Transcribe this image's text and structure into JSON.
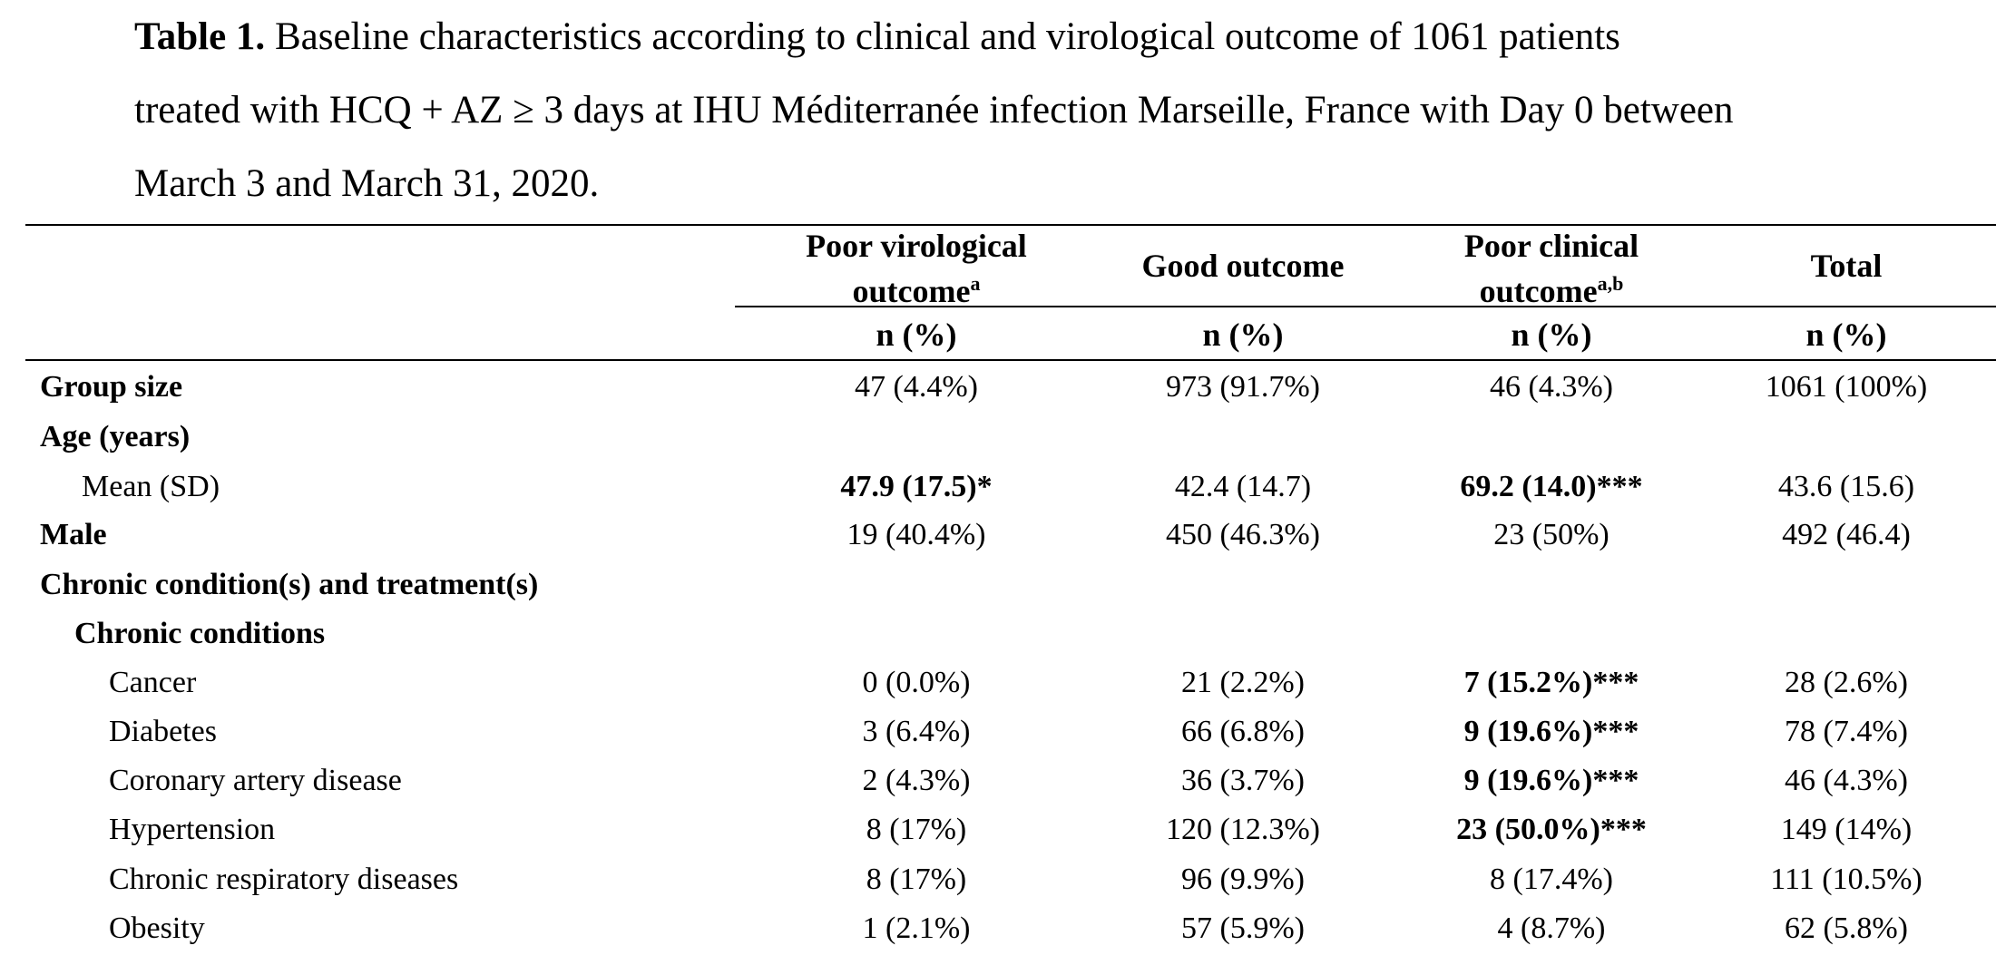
{
  "caption": {
    "label": "Table 1.",
    "line1": " Baseline characteristics according to clinical and virological outcome of 1061 patients",
    "line2": "treated with HCQ + AZ ≥ 3 days at IHU Méditerranée infection Marseille, France with Day 0 between",
    "line3": "March 3 and March 31, 2020."
  },
  "columns": {
    "poor_virological": {
      "line1": "Poor virological",
      "line2": "outcome",
      "sup": "a"
    },
    "good_outcome": {
      "label": "Good outcome"
    },
    "poor_clinical": {
      "line1": "Poor clinical",
      "line2": "outcome",
      "sup": "a,b"
    },
    "total": {
      "label": "Total"
    },
    "subheader": "n (%)"
  },
  "rows": [
    {
      "label": "Group size",
      "level": "l0",
      "values": [
        "47 (4.4%)",
        "973 (91.7%)",
        "46 (4.3%)",
        "1061 (100%)"
      ],
      "bold": [
        false,
        false,
        false,
        false
      ]
    },
    {
      "label": "Age (years)",
      "level": "l0",
      "values": [
        "",
        "",
        "",
        ""
      ],
      "bold": [
        false,
        false,
        false,
        false
      ]
    },
    {
      "label": "Mean (SD)",
      "level": "l1n",
      "values": [
        "47.9 (17.5)*",
        "42.4 (14.7)",
        "69.2 (14.0)***",
        "43.6 (15.6)"
      ],
      "bold": [
        true,
        false,
        true,
        false
      ]
    },
    {
      "label": "Male",
      "level": "l0",
      "values": [
        "19 (40.4%)",
        "450 (46.3%)",
        "23 (50%)",
        "492 (46.4)"
      ],
      "bold": [
        false,
        false,
        false,
        false
      ]
    },
    {
      "label": "Chronic condition(s) and treatment(s)",
      "level": "l0",
      "values": [
        "",
        "",
        "",
        ""
      ],
      "bold": [
        false,
        false,
        false,
        false
      ]
    },
    {
      "label": "Chronic conditions",
      "level": "l1",
      "values": [
        "",
        "",
        "",
        ""
      ],
      "bold": [
        false,
        false,
        false,
        false
      ]
    },
    {
      "label": "Cancer",
      "level": "l2",
      "values": [
        "0 (0.0%)",
        "21 (2.2%)",
        "7 (15.2%)***",
        "28 (2.6%)"
      ],
      "bold": [
        false,
        false,
        true,
        false
      ]
    },
    {
      "label": "Diabetes",
      "level": "l2",
      "values": [
        "3 (6.4%)",
        "66 (6.8%)",
        "9 (19.6%)***",
        "78 (7.4%)"
      ],
      "bold": [
        false,
        false,
        true,
        false
      ]
    },
    {
      "label": "Coronary artery disease",
      "level": "l2",
      "values": [
        "2 (4.3%)",
        "36 (3.7%)",
        "9 (19.6%)***",
        "46 (4.3%)"
      ],
      "bold": [
        false,
        false,
        true,
        false
      ]
    },
    {
      "label": "Hypertension",
      "level": "l2",
      "values": [
        "8 (17%)",
        "120 (12.3%)",
        "23 (50.0%)***",
        "149 (14%)"
      ],
      "bold": [
        false,
        false,
        true,
        false
      ]
    },
    {
      "label": "Chronic respiratory diseases",
      "level": "l2",
      "values": [
        "8 (17%)",
        "96 (9.9%)",
        "8 (17.4%)",
        "111 (10.5%)"
      ],
      "bold": [
        false,
        false,
        false,
        false
      ]
    },
    {
      "label": "Obesity",
      "level": "l2",
      "values": [
        "1 (2.1%)",
        "57 (5.9%)",
        "4 (8.7%)",
        "62 (5.8%)"
      ],
      "bold": [
        false,
        false,
        false,
        false
      ]
    }
  ]
}
